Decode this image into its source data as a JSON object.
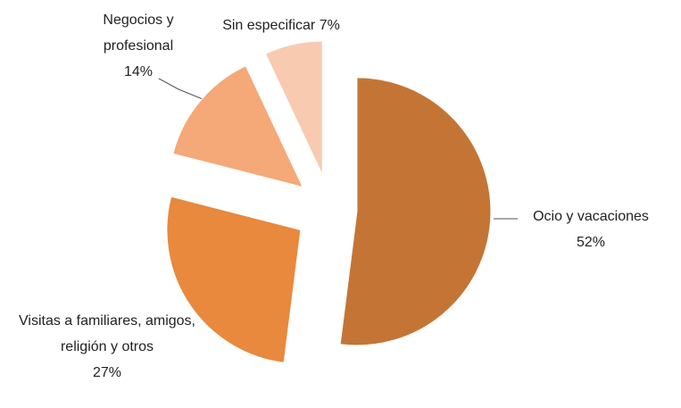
{
  "chart_data": {
    "type": "pie",
    "categories": [
      "Ocio y vacaciones",
      "Visitas a familiares, amigos, religión y otros",
      "Negocios y profesional",
      "Sin especificar"
    ],
    "values": [
      52,
      27,
      14,
      7
    ],
    "value_labels": [
      "52%",
      "27%",
      "14%",
      "7%"
    ],
    "colors": [
      "#c47535",
      "#e8893d",
      "#f5a878",
      "#f8cbb0"
    ]
  }
}
